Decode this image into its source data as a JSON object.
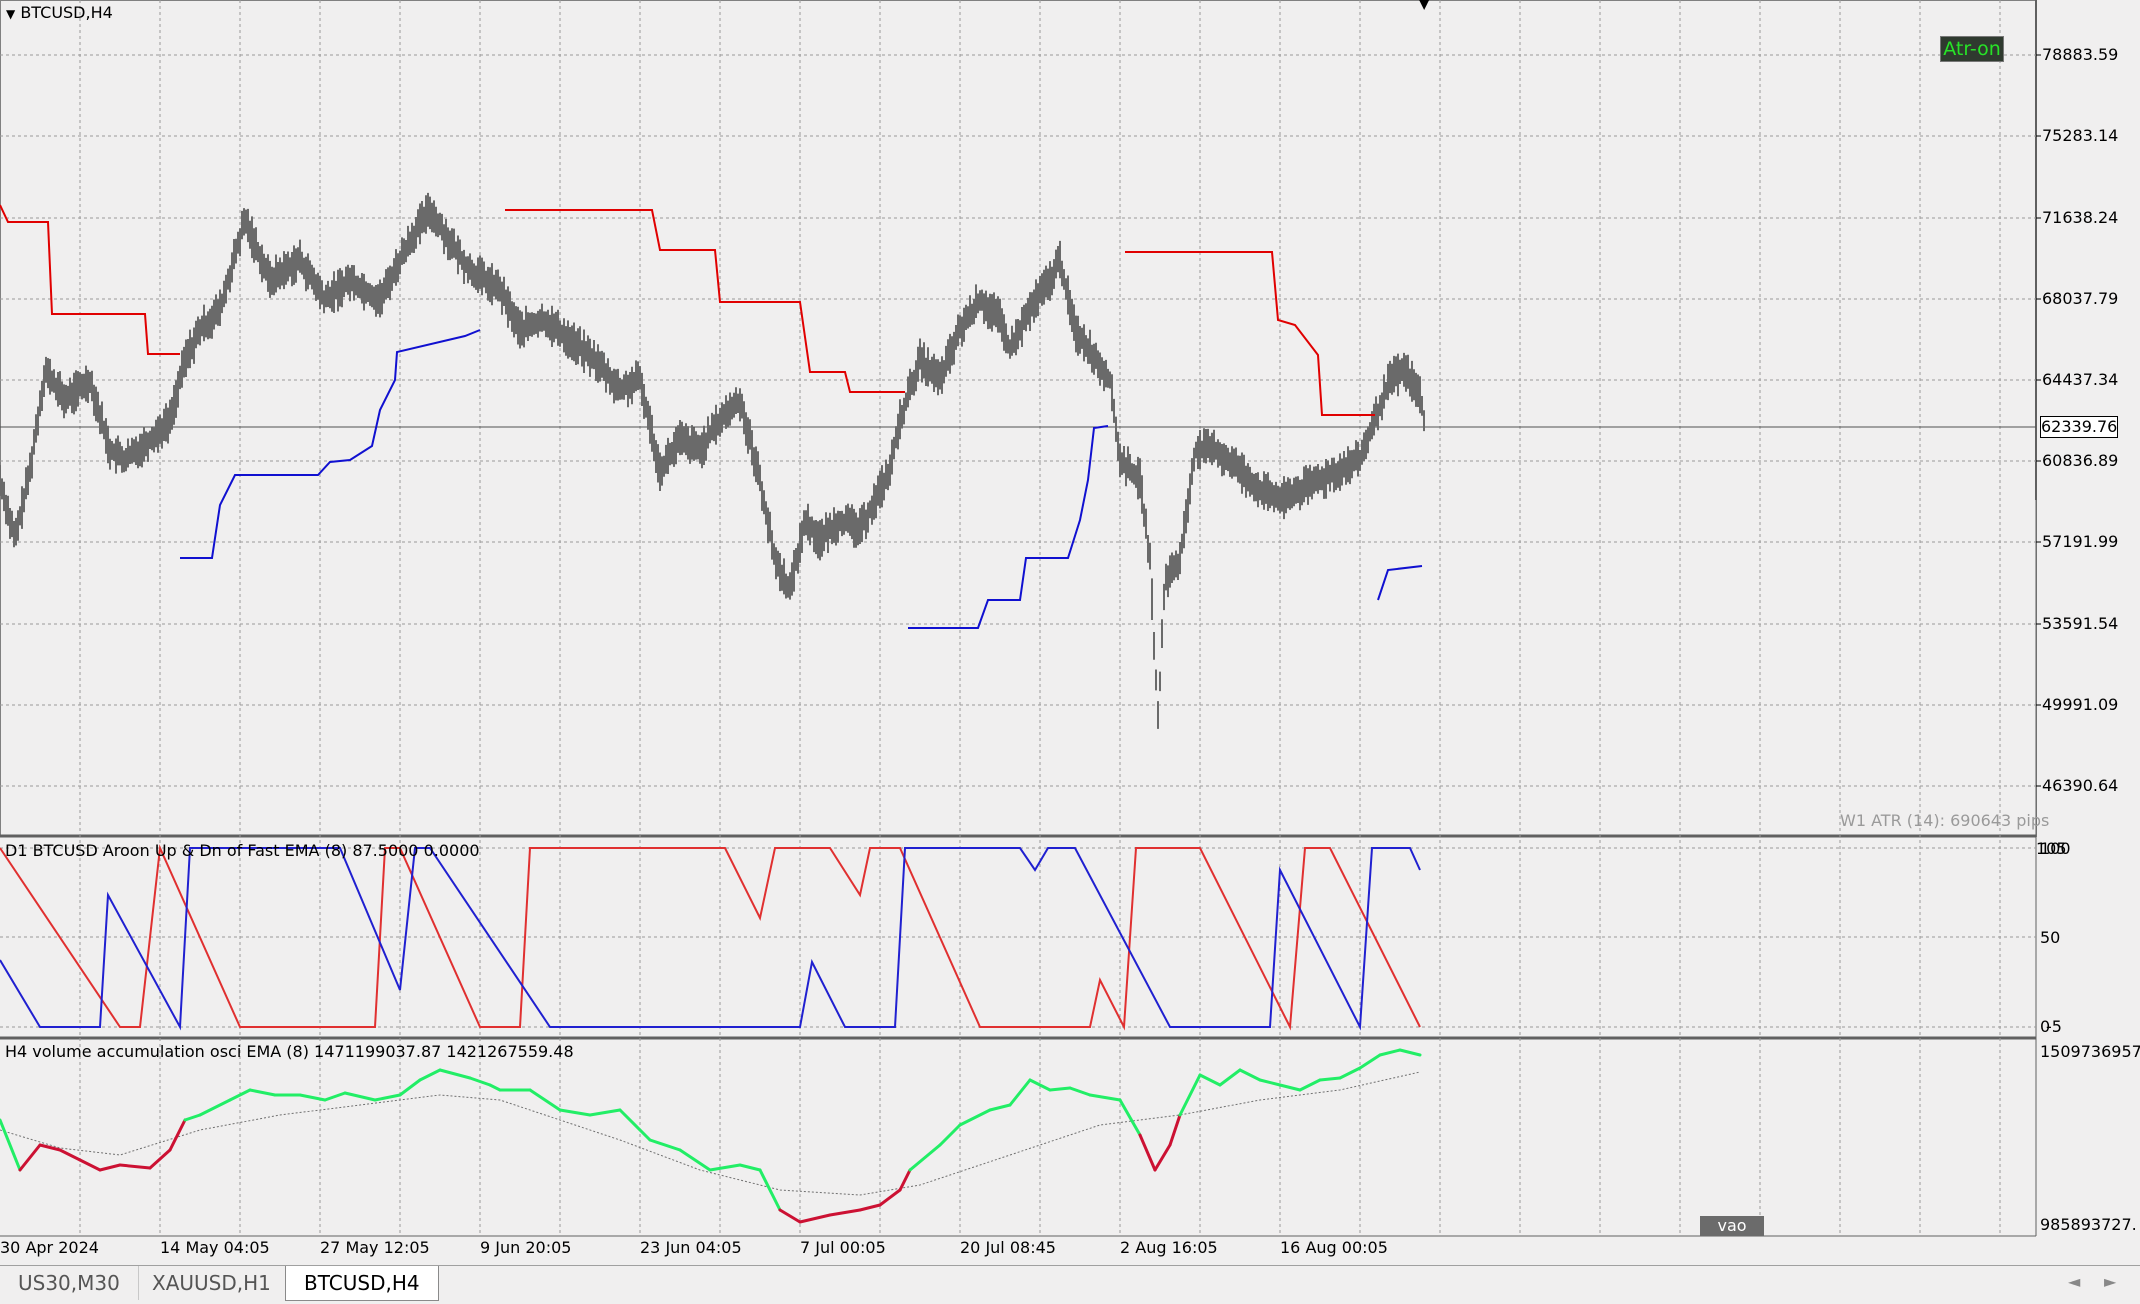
{
  "chart": {
    "symbol_label": "BTCUSD,H4",
    "atr_button_label": "Atr-on",
    "atr_info": "W1 ATR (14): 690643 pips",
    "current_price": "62339.76",
    "price_axis": [
      "78883.59",
      "75283.14",
      "71638.24",
      "68037.79",
      "64437.34",
      "60836.89",
      "57191.99",
      "53591.54",
      "49991.09",
      "46390.64"
    ],
    "time_axis": [
      "30 Apr 2024",
      "14 May 04:05",
      "27 May 12:05",
      "9 Jun 20:05",
      "23 Jun 04:05",
      "7 Jul 00:05",
      "20 Jul 08:45",
      "2 Aug 16:05",
      "16 Aug 00:05"
    ]
  },
  "aroon_panel": {
    "title": "D1 BTCUSD Aroon Up & Dn of Fast EMA (8) 87.5000 0.0000",
    "axis": {
      "top_a": "105",
      "top_b": "100",
      "mid": "50",
      "bottom_a": "0",
      "bottom_b": "-5"
    }
  },
  "volume_panel": {
    "title": "H4 volume accumulation osci EMA (8) 1471199037.87 1421267559.48",
    "axis_top": "1509736957",
    "axis_bottom": "985893727.",
    "vao_button_label": "vao"
  },
  "tabs": [
    {
      "label": "US30,M30",
      "active": false
    },
    {
      "label": "XAUUSD,H1",
      "active": false
    },
    {
      "label": "BTCUSD,H4",
      "active": true
    }
  ],
  "colors": {
    "bg": "#f0efef",
    "grid": "#9a9a9a",
    "price": "#6a6a6a",
    "resistance": "#e00000",
    "support": "#1010d0",
    "aroon_up": "#e03030",
    "aroon_dn": "#2020d0",
    "vol_pos": "#22ee66",
    "vol_neg": "#cc1133"
  }
}
